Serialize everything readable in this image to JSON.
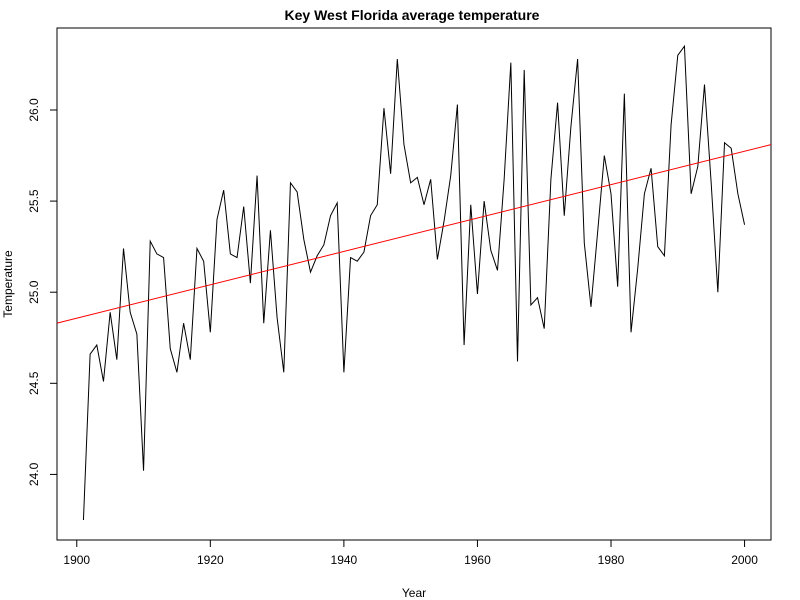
{
  "chart_data": {
    "type": "line",
    "title": "Key West Florida average temperature",
    "xlabel": "Year",
    "ylabel": "Temperature",
    "xlim": [
      1897.04,
      2003.96
    ],
    "ylim": [
      23.64,
      26.45
    ],
    "x_ticks": [
      1900,
      1920,
      1940,
      1960,
      1980,
      2000
    ],
    "y_ticks": [
      24.0,
      24.5,
      25.0,
      25.5,
      26.0
    ],
    "grid": false,
    "series": [
      {
        "color": "#000000",
        "x": [
          1901,
          1902,
          1903,
          1904,
          1905,
          1906,
          1907,
          1908,
          1909,
          1910,
          1911,
          1912,
          1913,
          1914,
          1915,
          1916,
          1917,
          1918,
          1919,
          1920,
          1921,
          1922,
          1923,
          1924,
          1925,
          1926,
          1927,
          1928,
          1929,
          1930,
          1931,
          1932,
          1933,
          1934,
          1935,
          1936,
          1937,
          1938,
          1939,
          1940,
          1941,
          1942,
          1943,
          1944,
          1945,
          1946,
          1947,
          1948,
          1949,
          1950,
          1951,
          1952,
          1953,
          1954,
          1955,
          1956,
          1957,
          1958,
          1959,
          1960,
          1961,
          1962,
          1963,
          1964,
          1965,
          1966,
          1967,
          1968,
          1969,
          1970,
          1971,
          1972,
          1973,
          1974,
          1975,
          1976,
          1977,
          1978,
          1979,
          1980,
          1981,
          1982,
          1983,
          1984,
          1985,
          1986,
          1987,
          1988,
          1989,
          1990,
          1991,
          1992,
          1993,
          1994,
          1995,
          1996,
          1997,
          1998,
          1999,
          2000
        ],
        "values": [
          23.75,
          24.66,
          24.71,
          24.51,
          24.89,
          24.63,
          25.24,
          24.89,
          24.77,
          24.02,
          25.28,
          25.21,
          25.19,
          24.69,
          24.56,
          24.83,
          24.63,
          25.24,
          25.17,
          24.78,
          25.4,
          25.56,
          25.21,
          25.19,
          25.47,
          25.05,
          25.64,
          24.83,
          25.34,
          24.86,
          24.56,
          25.6,
          25.55,
          25.29,
          25.11,
          25.2,
          25.26,
          25.42,
          25.49,
          24.56,
          25.19,
          25.17,
          25.22,
          25.42,
          25.48,
          26.01,
          25.65,
          26.28,
          25.81,
          25.6,
          25.63,
          25.48,
          25.62,
          25.18,
          25.39,
          25.64,
          26.03,
          24.71,
          25.48,
          24.99,
          25.5,
          25.23,
          25.12,
          25.62,
          26.26,
          24.62,
          26.22,
          24.93,
          24.97,
          24.8,
          25.62,
          26.04,
          25.42,
          25.91,
          26.28,
          25.27,
          24.92,
          25.33,
          25.75,
          25.54,
          25.03,
          26.09,
          24.78,
          25.13,
          25.54,
          25.68,
          25.25,
          25.2,
          25.92,
          26.3,
          26.35,
          25.54,
          25.69,
          26.14,
          25.6,
          25.0,
          25.82,
          25.79,
          25.54,
          25.37
        ]
      },
      {
        "color": "#ff0000",
        "trend": true,
        "x": [
          1897.04,
          2003.96
        ],
        "values": [
          24.83,
          25.81
        ]
      }
    ]
  }
}
